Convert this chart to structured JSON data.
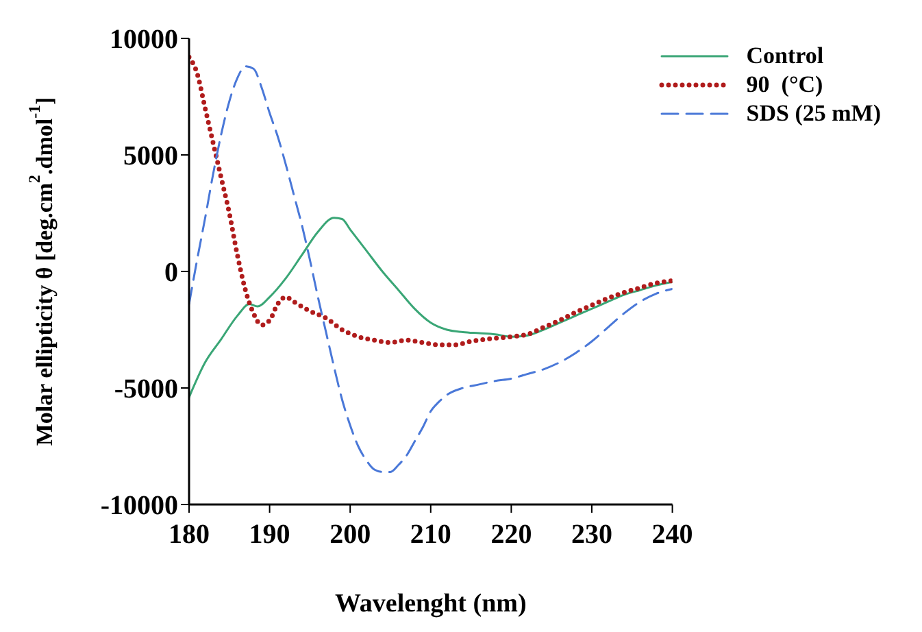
{
  "chart_data": {
    "type": "line",
    "xlabel": "Wavelenght (nm)",
    "ylabel": "Molar ellipticity θ [deg.cm$^{2}$.dmol$^{-1}$]",
    "xlim": [
      180,
      240
    ],
    "xticks": [
      180,
      190,
      200,
      210,
      220,
      230,
      240
    ],
    "ylim": [
      -10000,
      10000
    ],
    "yticks": [
      -10000,
      -5000,
      0,
      5000,
      10000
    ],
    "legend": "top right",
    "marker": "none",
    "series": [
      {
        "name": "Control",
        "color": "#3aa676",
        "line_style": "solid",
        "x": [
          180,
          182,
          184,
          186,
          187.5,
          188.5,
          190,
          192,
          194,
          196,
          198,
          199,
          200,
          202,
          204,
          206,
          208,
          210,
          212,
          214,
          216,
          218,
          220,
          222,
          224,
          226,
          228,
          230,
          232,
          234,
          236,
          238,
          240
        ],
        "values": [
          -5400,
          -3900,
          -2900,
          -1900,
          -1400,
          -1500,
          -1100,
          -300,
          700,
          1700,
          2300,
          2250,
          1800,
          900,
          0,
          -800,
          -1600,
          -2200,
          -2500,
          -2600,
          -2650,
          -2700,
          -2800,
          -2750,
          -2500,
          -2200,
          -1900,
          -1600,
          -1300,
          -1000,
          -800,
          -600,
          -450
        ]
      },
      {
        "name": "90  (°C)",
        "color": "#b01c1c",
        "line_style": "dotted",
        "x": [
          180,
          181,
          182,
          183,
          184,
          185,
          186,
          187,
          188,
          189,
          190,
          191,
          192,
          193,
          195,
          197,
          199,
          201,
          203,
          205,
          207,
          209,
          211,
          213,
          215,
          217,
          220,
          222,
          224,
          226,
          228,
          230,
          232,
          234,
          236,
          238,
          240
        ],
        "values": [
          9200,
          8500,
          7000,
          5500,
          4000,
          2500,
          700,
          -800,
          -1800,
          -2300,
          -2100,
          -1400,
          -1100,
          -1300,
          -1700,
          -2000,
          -2500,
          -2800,
          -2950,
          -3050,
          -2950,
          -3050,
          -3150,
          -3150,
          -3000,
          -2900,
          -2800,
          -2700,
          -2400,
          -2100,
          -1750,
          -1450,
          -1150,
          -900,
          -700,
          -500,
          -400
        ]
      },
      {
        "name": "SDS (25 mM)",
        "color": "#4a78d8",
        "line_style": "dashed",
        "x": [
          180,
          181,
          182,
          183,
          184,
          185,
          186,
          187,
          188,
          189,
          190,
          191,
          192,
          193,
          194,
          195,
          196,
          197,
          198,
          199,
          200,
          201,
          202,
          203,
          204,
          205,
          206,
          207,
          208,
          209,
          210,
          211,
          212,
          214,
          216,
          218,
          220,
          222,
          224,
          226,
          228,
          230,
          232,
          234,
          236,
          238,
          240
        ],
        "values": [
          -1400,
          500,
          2300,
          4200,
          5900,
          7300,
          8300,
          8800,
          8700,
          7900,
          6800,
          5800,
          4600,
          3300,
          2000,
          500,
          -1100,
          -2600,
          -4100,
          -5500,
          -6600,
          -7500,
          -8100,
          -8500,
          -8600,
          -8600,
          -8300,
          -7900,
          -7300,
          -6700,
          -6000,
          -5600,
          -5300,
          -5000,
          -4850,
          -4700,
          -4600,
          -4400,
          -4200,
          -3900,
          -3500,
          -3000,
          -2400,
          -1800,
          -1300,
          -950,
          -750
        ]
      }
    ]
  }
}
